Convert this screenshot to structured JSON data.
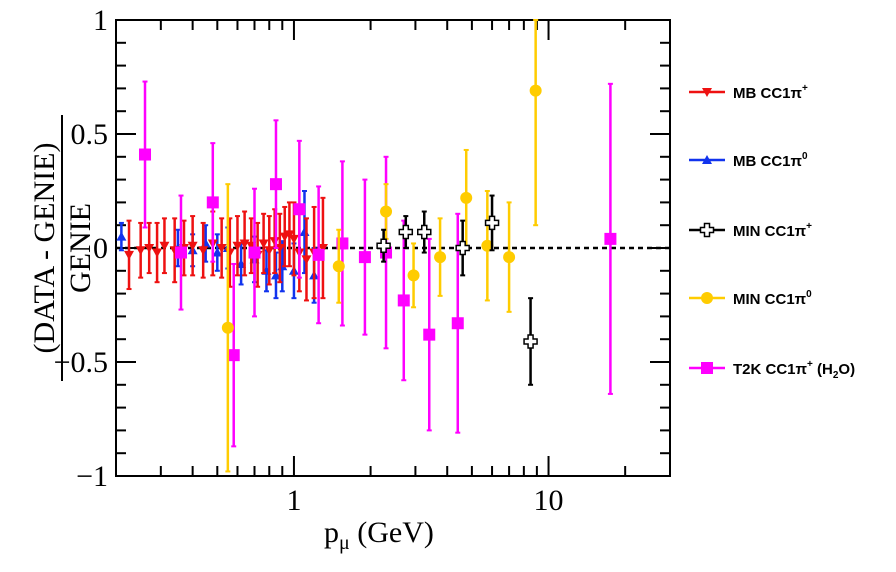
{
  "chart_data": {
    "type": "scatter",
    "x_scale": "log",
    "xlim": [
      0.2,
      30
    ],
    "ylim": [
      -1,
      1
    ],
    "xlabel": {
      "main": "p",
      "sub": "μ",
      "unit": "(GeV)"
    },
    "ylabel": {
      "numerator": "(DATA - GENIE)",
      "denominator": "GENIE"
    },
    "x_ticks": [
      {
        "value": 1,
        "label": "1"
      },
      {
        "value": 10,
        "label": "10"
      }
    ],
    "y_ticks": [
      {
        "value": 1,
        "label": "1"
      },
      {
        "value": 0.5,
        "label": "0.5"
      },
      {
        "value": 0,
        "label": "0"
      },
      {
        "value": -0.5,
        "label": "−0.5"
      },
      {
        "value": -1,
        "label": "−1"
      }
    ],
    "reference_line": 0,
    "series": [
      {
        "name": "MB CC1π+",
        "legend": {
          "base": "MB CC1π",
          "sup": "+",
          "sub": "",
          "tail": ""
        },
        "color": "#ee1111",
        "marker": "triangle-down",
        "points": [
          {
            "x": 0.225,
            "y": -0.03,
            "err": 0.15
          },
          {
            "x": 0.25,
            "y": -0.01,
            "err": 0.12
          },
          {
            "x": 0.27,
            "y": 0.0,
            "err": 0.11
          },
          {
            "x": 0.29,
            "y": -0.02,
            "err": 0.13
          },
          {
            "x": 0.31,
            "y": 0.01,
            "err": 0.12
          },
          {
            "x": 0.34,
            "y": -0.01,
            "err": 0.14
          },
          {
            "x": 0.37,
            "y": 0.0,
            "err": 0.12
          },
          {
            "x": 0.4,
            "y": 0.01,
            "err": 0.13
          },
          {
            "x": 0.44,
            "y": -0.01,
            "err": 0.12
          },
          {
            "x": 0.48,
            "y": 0.02,
            "err": 0.14
          },
          {
            "x": 0.52,
            "y": 0.0,
            "err": 0.13
          },
          {
            "x": 0.56,
            "y": -0.02,
            "err": 0.15
          },
          {
            "x": 0.6,
            "y": 0.01,
            "err": 0.13
          },
          {
            "x": 0.64,
            "y": 0.02,
            "err": 0.14
          },
          {
            "x": 0.68,
            "y": 0.01,
            "err": 0.12
          },
          {
            "x": 0.72,
            "y": -0.03,
            "err": 0.14
          },
          {
            "x": 0.76,
            "y": 0.02,
            "err": 0.13
          },
          {
            "x": 0.8,
            "y": -0.01,
            "err": 0.15
          },
          {
            "x": 0.84,
            "y": 0.03,
            "err": 0.14
          },
          {
            "x": 0.88,
            "y": 0.0,
            "err": 0.15
          },
          {
            "x": 0.92,
            "y": 0.05,
            "err": 0.13
          },
          {
            "x": 0.96,
            "y": 0.06,
            "err": 0.14
          },
          {
            "x": 1.0,
            "y": 0.04,
            "err": 0.16
          },
          {
            "x": 1.05,
            "y": -0.02,
            "err": 0.17
          },
          {
            "x": 1.12,
            "y": -0.05,
            "err": 0.18
          },
          {
            "x": 1.2,
            "y": -0.02,
            "err": 0.2
          },
          {
            "x": 1.3,
            "y": 0.0,
            "err": 0.22
          }
        ]
      },
      {
        "name": "MB CC1π0",
        "legend": {
          "base": "MB CC1π",
          "sup": "0",
          "sub": "",
          "tail": ""
        },
        "color": "#1133ee",
        "marker": "triangle-up",
        "points": [
          {
            "x": 0.21,
            "y": 0.05,
            "err": 0.06
          },
          {
            "x": 0.35,
            "y": 0.0,
            "err": 0.08
          },
          {
            "x": 0.4,
            "y": -0.01,
            "err": 0.07
          },
          {
            "x": 0.45,
            "y": 0.02,
            "err": 0.08
          },
          {
            "x": 0.5,
            "y": -0.02,
            "err": 0.08
          },
          {
            "x": 0.55,
            "y": 0.0,
            "err": 0.09
          },
          {
            "x": 0.62,
            "y": -0.07,
            "err": 0.09
          },
          {
            "x": 0.7,
            "y": -0.05,
            "err": 0.1
          },
          {
            "x": 0.78,
            "y": -0.1,
            "err": 0.09
          },
          {
            "x": 0.85,
            "y": -0.12,
            "err": 0.1
          },
          {
            "x": 0.9,
            "y": -0.08,
            "err": 0.11
          },
          {
            "x": 1.0,
            "y": -0.1,
            "err": 0.12
          },
          {
            "x": 1.1,
            "y": 0.07,
            "err": 0.18
          },
          {
            "x": 1.2,
            "y": -0.12,
            "err": 0.12
          }
        ]
      },
      {
        "name": "MIN CC1π+",
        "legend": {
          "base": "MIN CC1π",
          "sup": "+",
          "sub": "",
          "tail": ""
        },
        "color": "#000000",
        "marker": "cross-open",
        "points": [
          {
            "x": 2.25,
            "y": 0.01,
            "err": 0.07
          },
          {
            "x": 2.75,
            "y": 0.07,
            "err": 0.07
          },
          {
            "x": 3.25,
            "y": 0.07,
            "err": 0.09
          },
          {
            "x": 4.6,
            "y": 0.0,
            "err": 0.12
          },
          {
            "x": 6.0,
            "y": 0.11,
            "err": 0.12
          },
          {
            "x": 8.5,
            "y": -0.41,
            "err": 0.19
          }
        ]
      },
      {
        "name": "MIN CC1π0",
        "legend": {
          "base": "MIN CC1π",
          "sup": "0",
          "sub": "",
          "tail": ""
        },
        "color": "#ffcc00",
        "marker": "circle",
        "points": [
          {
            "x": 0.55,
            "y": -0.35,
            "err": 0.63
          },
          {
            "x": 1.5,
            "y": -0.08,
            "err": 0.16
          },
          {
            "x": 2.3,
            "y": 0.16,
            "err": 0.12
          },
          {
            "x": 2.95,
            "y": -0.12,
            "err": 0.14
          },
          {
            "x": 3.75,
            "y": -0.04,
            "err": 0.17
          },
          {
            "x": 4.75,
            "y": 0.22,
            "err": 0.21
          },
          {
            "x": 5.75,
            "y": 0.01,
            "err": 0.24
          },
          {
            "x": 7.0,
            "y": -0.04,
            "err": 0.24
          },
          {
            "x": 8.9,
            "y": 0.69,
            "err": 0.59
          }
        ]
      },
      {
        "name": "T2K CC1π+ (H2O)",
        "legend": {
          "base": "T2K CC1π",
          "sup": "+",
          "sub": "2",
          "tail": "O)"
        },
        "color": "#ff00ff",
        "marker": "square",
        "points": [
          {
            "x": 0.26,
            "y": 0.41,
            "err": 0.32
          },
          {
            "x": 0.36,
            "y": -0.02,
            "err": 0.25
          },
          {
            "x": 0.48,
            "y": 0.2,
            "err": 0.26
          },
          {
            "x": 0.58,
            "y": -0.47,
            "err": 0.4
          },
          {
            "x": 0.7,
            "y": -0.02,
            "err": 0.28
          },
          {
            "x": 0.85,
            "y": 0.28,
            "err": 0.28
          },
          {
            "x": 1.05,
            "y": 0.17,
            "err": 0.3
          },
          {
            "x": 1.25,
            "y": -0.03,
            "err": 0.3
          },
          {
            "x": 1.55,
            "y": 0.02,
            "err": 0.36
          },
          {
            "x": 1.9,
            "y": -0.04,
            "err": 0.34
          },
          {
            "x": 2.3,
            "y": -0.02,
            "err": 0.42
          },
          {
            "x": 2.7,
            "y": -0.23,
            "err": 0.35
          },
          {
            "x": 3.4,
            "y": -0.38,
            "err": 0.42
          },
          {
            "x": 4.4,
            "y": -0.33,
            "err": 0.48
          },
          {
            "x": 17.5,
            "y": 0.04,
            "err": 0.68
          }
        ]
      }
    ]
  }
}
